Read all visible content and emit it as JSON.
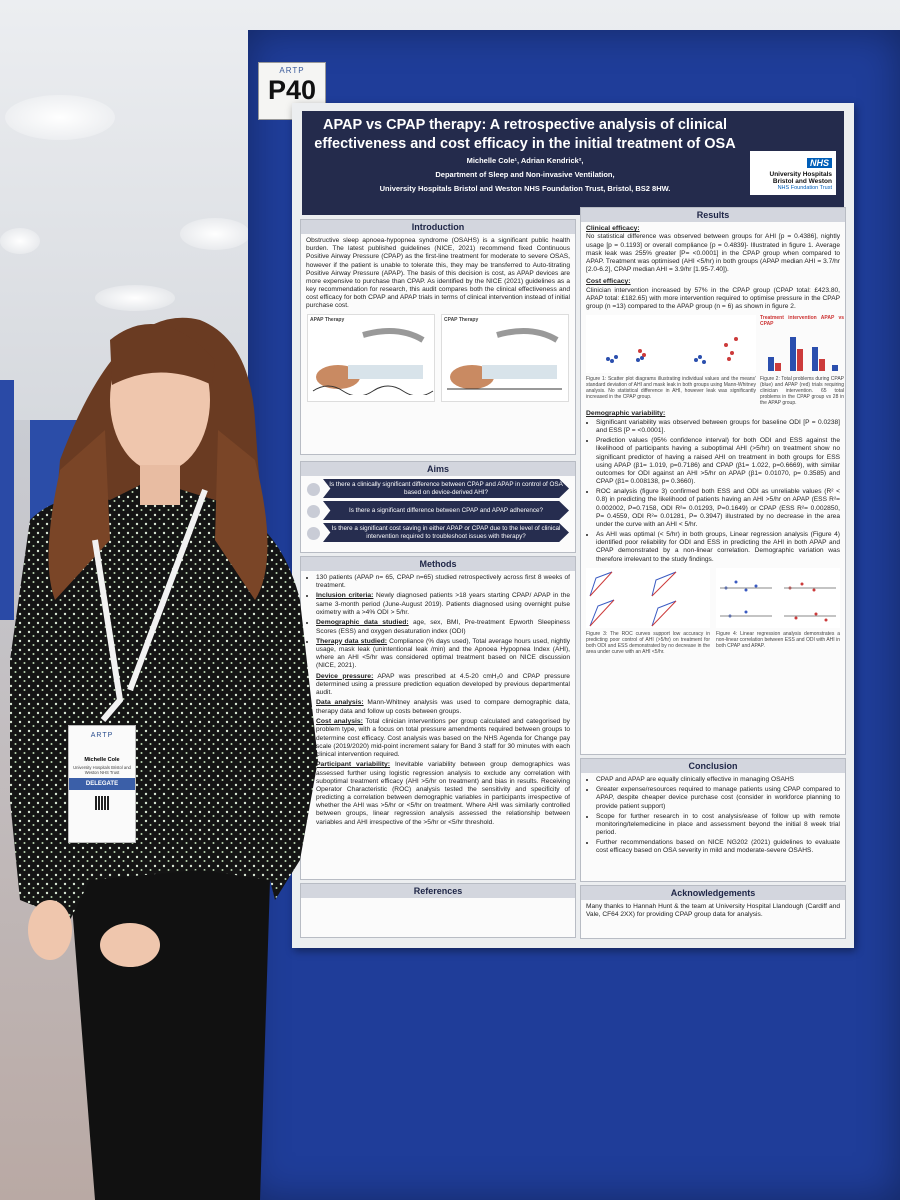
{
  "board": {
    "label": "P40",
    "logo": "ARTP"
  },
  "poster": {
    "title": "APAP vs CPAP therapy: A retrospective analysis of clinical effectiveness and cost efficacy in the initial treatment of OSA",
    "authors": "Michelle Cole¹, Adrian Kendrick²,",
    "department": "Department of Sleep and Non-invasive Ventilation,",
    "trust": "University Hospitals Bristol and Weston NHS Foundation Trust, Bristol, BS2 8HW.",
    "nhs_logo": [
      "NHS",
      "University Hospitals",
      "Bristol and Weston",
      "NHS Foundation Trust"
    ],
    "introduction": {
      "heading": "Introduction",
      "text": "Obstructive sleep apnoea-hypopnea syndrome (OSAHS) is a significant public health burden. The latest published guidelines (NICE, 2021) recommend fixed Continuous Positive Airway Pressure (CPAP) as the first-line treatment for moderate to severe OSAS, however if the patient is unable to tolerate this, they may be transferred to Auto-titrating Positive Airway Pressure (APAP). The basis of this decision is cost, as APAP devices are more expensive to purchase than CPAP. As identified by the NICE (2021) guidelines as a key recommendation for research, this audit compares both the clinical effectiveness and cost efficacy for both CPAP and APAP trials in terms of clinical intervention instead of initial purchase cost.",
      "figures": [
        "APAP Therapy",
        "CPAP Therapy"
      ]
    },
    "aims": {
      "heading": "Aims",
      "items": [
        "Is there a clinically significant difference between CPAP and APAP in control of OSA based on device-derived AHI?",
        "Is there a significant difference between CPAP and APAP adherence?",
        "Is there a significant cost saving in either APAP or CPAP due to the level of clinical intervention required to troubleshoot issues with therapy?"
      ]
    },
    "methods": {
      "heading": "Methods",
      "intro": "130 patients (APAP n= 65, CPAP n=65) studied retrospectively across first 8 weeks of treatment.",
      "items": [
        {
          "label": "Inclusion criteria:",
          "text": "Newly diagnosed patients >18 years starting CPAP/ APAP in the same 3-month period (June-August 2019). Patients diagnosed using overnight pulse oximetry with a >4% ODI > 5/hr."
        },
        {
          "label": "Demographic data studied:",
          "text": "age, sex, BMI, Pre-treatment Epworth Sleepiness Scores (ESS) and oxygen desaturation index (ODI)"
        },
        {
          "label": "Therapy data studied:",
          "text": "Compliance (% days used), Total average hours used, nightly usage, mask leak (unintentional leak /min) and the Apnoea Hypopnea Index (AHI), where an AHI <5/hr was considered optimal treatment based on NICE discussion (NICE, 2021)."
        },
        {
          "label": "Device pressure:",
          "text": "APAP was prescribed at 4.5-20 cmH₂0 and CPAP pressure determined using a pressure prediction equation developed by previous departmental audit."
        },
        {
          "label": "Data analysis:",
          "text": "Mann-Whitney analysis was used to compare demographic data, therapy data and follow up costs between groups."
        },
        {
          "label": "Cost analysis:",
          "text": "Total clinician interventions per group calculated and categorised by problem type, with a focus on total pressure amendments required between groups to determine cost efficacy. Cost analysis was based on the NHS Agenda for Change pay scale (2019/2020) mid-point increment salary for Band 3 staff for 30 minutes with each clinical intervention required."
        },
        {
          "label": "Participant variability:",
          "text": "Inevitable variability between group demographics was assessed further using logistic regression analysis to exclude any correlation with suboptimal treatment efficacy (AHI >5/hr on treatment) and bias in results. Receiving Operator Characteristic (ROC) analysis tested the sensitivity and specificity of predicting a correlation between demographic variables in participants irrespective of whether the AHI was >5/hr or <5/hr on treatment. Where AHI was similarly controlled between groups, linear regression analysis assessed the relationship between variables and AHI irrespective of the >5/hr or <5/hr threshold."
        }
      ]
    },
    "references": {
      "heading": "References"
    },
    "results": {
      "heading": "Results",
      "clinical_efficacy": {
        "label": "Clinical efficacy:",
        "text": "No statistical difference was observed between groups for AHI [p = 0.4386], nightly usage [p = 0.1193] or overall compliance [p = 0.4839]- Illustrated in figure 1. Average mask leak was 255% greater [P= <0.0001] in the CPAP group when compared to APAP. Treatment was optimised (AHI <5/hr) in both groups (APAP median AHI = 3.7/hr [2.0-6.2], CPAP median AHI = 3.9/hr [1.95-7.40])."
      },
      "cost_efficacy": {
        "label": "Cost efficacy:",
        "text": "Clinician intervention increased by 57% in the CPAP group (CPAP total: £423.80, APAP total: £182.65) with more intervention required to optimise pressure in the CPAP group (n =13) compared to the APAP group (n = 6) as shown in figure 2."
      },
      "figure_2_title": "Treatment intervention APAP vs CPAP",
      "figure_1_caption": "Figure 1: Scatter plot diagrams illustrating individual values and the means' standard deviation of AHI and mask leak in both groups using Mann-Whitney analysis. No statistical difference in AHI, however leak was significantly increased in the CPAP group.",
      "figure_2_caption": "Figure 2: Total problems during CPAP (blue) and APAP (red) trials requiring clinician intervention. 65 total problems in the CPAP group vs 28 in the APAP group.",
      "demographic": {
        "label": "Demographic variability:",
        "items": [
          "Significant variability was observed between groups for baseline ODI [P = 0.0238] and ESS [P = <0.0001].",
          "Prediction values (95% confidence interval) for both ODI and ESS against the likelihood of participants having a suboptimal AHI (>5/hr) on treatment show no significant predictor of having a raised AHI on treatment in both groups for ESS using APAP (β1= 1.019, p=0.7186) and CPAP (β1= 1.022, p=0.6669), with similar outcomes for ODI against an AHI >5/hr on APAP (β1= 0.01070, p= 0.3585) and CPAP (β1= 0.008138, p= 0.3660).",
          "ROC analysis (figure 3) confirmed both ESS and ODI as unreliable values (R² < 0.8) in predicting the likelihood of patients having an AHI >5/hr on APAP (ESS R²= 0.002002, P=0.7158, ODI R²= 0.01293, P=0.1649) or CPAP (ESS R²= 0.002850, P= 0.4559, ODI R²= 0.01281, P= 0.3947) illustrated by no decrease in the area under the curve with an AHI < 5/hr.",
          "As AHI was optimal (< 5/hr) in both groups, Linear regression analysis (Figure 4) identified poor reliability for ODI and ESS in predicting the AHI in both APAP and CPAP demonstrated by a non-linear correlation. Demographic variation was therefore irrelevant to the study findings."
        ]
      },
      "figure_3_caption": "Figure 3: The ROC curves support low accuracy in predicting poor control of AHI (>5/hr) on treatment for both ODI and ESS demonstrated by no decrease in the area under curve with an AHI <5/hr.",
      "figure_4_caption": "Figure 4: Linear regression analysis demonstrates a non-linear correlation between ESS and ODI with AHI in both CPAP and APAP."
    },
    "conclusion": {
      "heading": "Conclusion",
      "items": [
        "CPAP and APAP are equally clinically effective in managing OSAHS",
        "Greater expense/resources required to manage patients using CPAP compared to APAP, despite cheaper device purchase cost (consider in workforce planning to provide patient support)",
        "Scope for further research in to cost analysis/ease of follow up with remote monitoring/telemedicine in place and assessment beyond the initial 8 week trial period.",
        "Further recommendations based on NICE NG202 (2021) guidelines to evaluate cost efficacy based on OSA severity in mild and moderate-severe OSAHS."
      ]
    },
    "acknowledgements": {
      "heading": "Acknowledgements",
      "text": "Many thanks to Hannah Hunt & the team at University Hospital Llandough (Cardiff and Vale, CF64 2XX) for providing CPAP group data for analysis."
    }
  },
  "badge": {
    "logo": "ARTP",
    "name": "Michelle Cole",
    "organisation": "University Hospitals Bristol and Weston NHS Trust",
    "role": "DELEGATE"
  }
}
